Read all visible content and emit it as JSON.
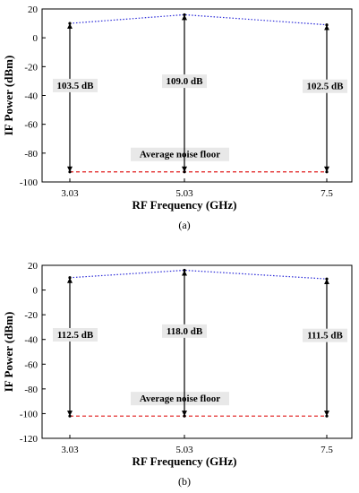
{
  "chart_data": [
    {
      "type": "line",
      "panel_label": "(a)",
      "xlabel": "RF Frequency (GHz)",
      "ylabel": "IF Power (dBm)",
      "categories": [
        "3.03",
        "5.03",
        "7.5"
      ],
      "ylim": [
        -100,
        20
      ],
      "yticks": [
        20,
        0,
        -20,
        -40,
        -60,
        -80,
        -100
      ],
      "grid": false,
      "legend": "none",
      "series": [
        {
          "values": [
            10,
            16,
            9
          ],
          "color": "#2a2ad8",
          "style": "dotted"
        }
      ],
      "noise_floor": {
        "value": -93,
        "label": "Average noise floor",
        "color": "#e01b1b",
        "style": "dashed"
      },
      "dynamic_range_labels": [
        "103.5 dB",
        "109.0 dB",
        "102.5 dB"
      ]
    },
    {
      "type": "line",
      "panel_label": "(b)",
      "xlabel": "RF Frequency (GHz)",
      "ylabel": "IF Power (dBm)",
      "categories": [
        "3.03",
        "5.03",
        "7.5"
      ],
      "ylim": [
        -120,
        20
      ],
      "yticks": [
        20,
        0,
        -20,
        -40,
        -60,
        -80,
        -100,
        -120
      ],
      "grid": false,
      "legend": "none",
      "series": [
        {
          "values": [
            10,
            16,
            9
          ],
          "color": "#2a2ad8",
          "style": "dotted"
        }
      ],
      "noise_floor": {
        "value": -102,
        "label": "Average noise floor",
        "color": "#e01b1b",
        "style": "dashed"
      },
      "dynamic_range_labels": [
        "112.5 dB",
        "118.0 dB",
        "111.5 dB"
      ]
    }
  ]
}
